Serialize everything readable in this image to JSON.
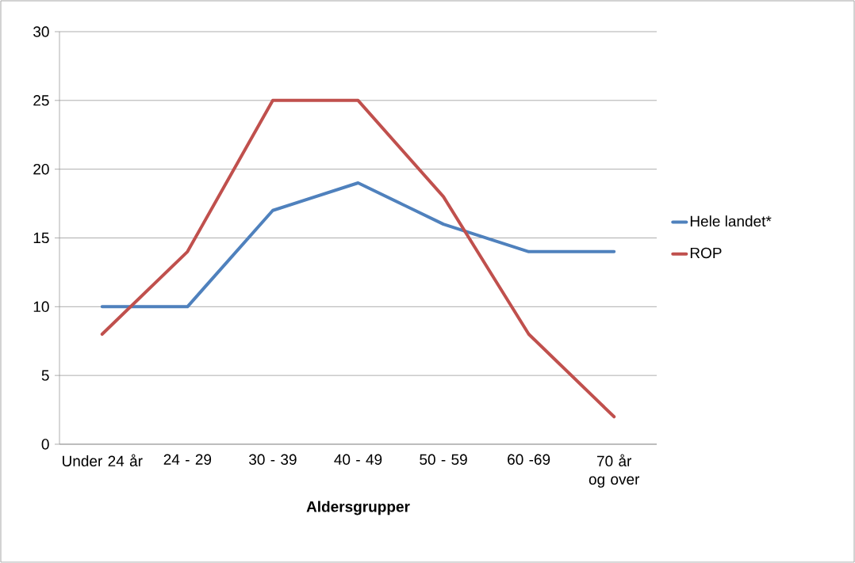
{
  "chart_data": {
    "type": "line",
    "xlabel": "Aldersgrupper",
    "categories": [
      "Under 24 år",
      "24 - 29",
      "30 - 39",
      "40 - 49",
      "50 - 59",
      "60 -69",
      "70 år og over"
    ],
    "series": [
      {
        "name": "Hele landet*",
        "color": "#4f81bd",
        "values": [
          10,
          10,
          17,
          19,
          16,
          14,
          14
        ]
      },
      {
        "name": "ROP",
        "color": "#c0504d",
        "values": [
          8,
          14,
          25,
          25,
          18,
          8,
          2
        ]
      }
    ],
    "ylim": [
      0,
      30
    ],
    "yticks": [
      0,
      5,
      10,
      15,
      20,
      25,
      30
    ],
    "grid": "y",
    "legend": "right",
    "marker": "none",
    "line_style": "solid"
  }
}
